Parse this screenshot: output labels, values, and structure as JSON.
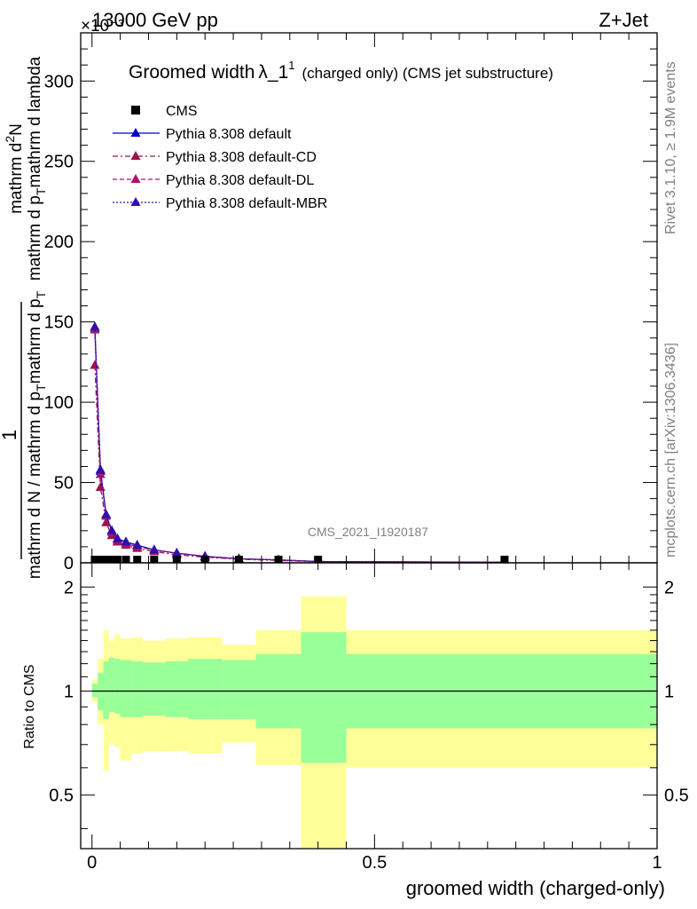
{
  "header": {
    "energy_label": "13000 GeV pp",
    "process_label": "Z+Jet",
    "y_exponent_label": "×10⁻³"
  },
  "side": {
    "rivet_label": "Rivet 3.1.10, ≥ 1.9M events",
    "mcplots_label": "mcplots.cern.ch [arXiv:1306.3436]"
  },
  "chart_data": [
    {
      "type": "line",
      "title_main": "Groomed width",
      "title_symbol": "λ_1",
      "title_sup": "1",
      "title_rest": "(charged only) (CMS jet substructure)",
      "watermark": "CMS_2021_I1920187",
      "ylabel_top": "1",
      "ylabel_bottom": "mathrm d N / mathrm d p_T mathrm d p_T",
      "ylabel_bottom_parts": [
        "mathrm d N / mathrm d p",
        "T",
        "mathrm d p",
        "T"
      ],
      "ylabel_numerator_parts": [
        "mathrm d",
        "2",
        "N"
      ],
      "ylabel_denominator_parts": [
        "mathrm d p",
        "T",
        "mathrm d lambda"
      ],
      "ylim": [
        0,
        330
      ],
      "yticks": [
        0,
        50,
        100,
        150,
        200,
        250,
        300
      ],
      "ytick_labels": [
        "0",
        "50",
        "100",
        "150",
        "200",
        "250",
        "300"
      ],
      "xlim": [
        -0.02,
        1.0
      ],
      "legend": [
        {
          "label": "CMS",
          "marker": "square",
          "color": "#000000",
          "dash": "none"
        },
        {
          "label": "Pythia 8.308 default",
          "marker": "triangle",
          "color": "#0000cc",
          "dash": "solid"
        },
        {
          "label": "Pythia 8.308 default-CD",
          "marker": "triangle",
          "color": "#a01050",
          "dash": "dashdot"
        },
        {
          "label": "Pythia 8.308 default-DL",
          "marker": "triangle",
          "color": "#b0106a",
          "dash": "dashed"
        },
        {
          "label": "Pythia 8.308 default-MBR",
          "marker": "triangle",
          "color": "#3010aa",
          "dash": "dotted"
        }
      ],
      "cms": {
        "x": [
          0.005,
          0.015,
          0.025,
          0.035,
          0.045,
          0.06,
          0.08,
          0.11,
          0.15,
          0.2,
          0.26,
          0.33,
          0.4,
          0.73
        ],
        "y": [
          0.5,
          0.5,
          0.5,
          0.5,
          0.5,
          0.5,
          0.5,
          0.5,
          0.5,
          0.5,
          0.5,
          0.5,
          0.5,
          0.5
        ]
      },
      "series": [
        {
          "name": "Pythia 8.308 default",
          "x": [
            0.005,
            0.015,
            0.025,
            0.035,
            0.045,
            0.06,
            0.08,
            0.11,
            0.15,
            0.2,
            0.26,
            0.33,
            0.4,
            0.73
          ],
          "y": [
            146,
            57,
            30,
            20,
            15,
            13,
            11,
            8,
            6,
            4,
            2.5,
            1.8,
            0.8,
            0.3
          ]
        },
        {
          "name": "Pythia 8.308 default-CD",
          "x": [
            0.005,
            0.015,
            0.025,
            0.035,
            0.045,
            0.06,
            0.08,
            0.11,
            0.15,
            0.2,
            0.26,
            0.33,
            0.4,
            0.73
          ],
          "y": [
            123,
            47,
            25,
            17,
            13,
            11,
            9,
            7,
            5,
            3.5,
            2.2,
            1.5,
            0.7,
            0.3
          ]
        },
        {
          "name": "Pythia 8.308 default-DL",
          "x": [
            0.005,
            0.015,
            0.025,
            0.035,
            0.045,
            0.06,
            0.08,
            0.11,
            0.15,
            0.2,
            0.26,
            0.33,
            0.4,
            0.73
          ],
          "y": [
            145,
            55,
            29,
            19,
            14,
            12,
            10,
            8,
            6,
            4,
            2.5,
            1.8,
            0.8,
            0.3
          ]
        },
        {
          "name": "Pythia 8.308 default-MBR",
          "x": [
            0.005,
            0.015,
            0.025,
            0.035,
            0.045,
            0.06,
            0.08,
            0.11,
            0.15,
            0.2,
            0.26,
            0.33,
            0.4,
            0.73
          ],
          "y": [
            147,
            58,
            30,
            20,
            15,
            13,
            11,
            8,
            6,
            4,
            2.5,
            1.8,
            0.8,
            0.3
          ]
        }
      ]
    },
    {
      "type": "area",
      "ylabel": "Ratio to CMS",
      "xlabel": "groomed width (charged-only)",
      "ylim": [
        0.35,
        2.35
      ],
      "log_y": true,
      "yticks": [
        0.5,
        1,
        2
      ],
      "ytick_labels": [
        "0.5",
        "1",
        "2"
      ],
      "xlim": [
        -0.02,
        1.0
      ],
      "xticks": [
        0,
        0.5,
        1
      ],
      "xtick_labels": [
        "0",
        "0.5",
        "1"
      ],
      "bins": [
        {
          "lo": 0.0,
          "hi": 0.01,
          "inner": [
            0.96,
            1.05
          ],
          "outer": [
            0.93,
            1.08
          ]
        },
        {
          "lo": 0.01,
          "hi": 0.02,
          "inner": [
            0.88,
            1.13
          ],
          "outer": [
            0.8,
            1.24
          ]
        },
        {
          "lo": 0.02,
          "hi": 0.03,
          "inner": [
            0.83,
            1.22
          ],
          "outer": [
            0.59,
            1.5
          ]
        },
        {
          "lo": 0.03,
          "hi": 0.04,
          "inner": [
            0.87,
            1.25
          ],
          "outer": [
            0.7,
            1.4
          ]
        },
        {
          "lo": 0.04,
          "hi": 0.05,
          "inner": [
            0.86,
            1.24
          ],
          "outer": [
            0.69,
            1.46
          ]
        },
        {
          "lo": 0.05,
          "hi": 0.07,
          "inner": [
            0.84,
            1.23
          ],
          "outer": [
            0.63,
            1.42
          ]
        },
        {
          "lo": 0.07,
          "hi": 0.09,
          "inner": [
            0.84,
            1.22
          ],
          "outer": [
            0.66,
            1.43
          ]
        },
        {
          "lo": 0.09,
          "hi": 0.13,
          "inner": [
            0.85,
            1.21
          ],
          "outer": [
            0.67,
            1.4
          ]
        },
        {
          "lo": 0.13,
          "hi": 0.17,
          "inner": [
            0.84,
            1.22
          ],
          "outer": [
            0.67,
            1.42
          ]
        },
        {
          "lo": 0.17,
          "hi": 0.23,
          "inner": [
            0.83,
            1.24
          ],
          "outer": [
            0.66,
            1.43
          ]
        },
        {
          "lo": 0.23,
          "hi": 0.29,
          "inner": [
            0.83,
            1.23
          ],
          "outer": [
            0.71,
            1.36
          ]
        },
        {
          "lo": 0.29,
          "hi": 0.37,
          "inner": [
            0.78,
            1.28
          ],
          "outer": [
            0.61,
            1.5
          ]
        },
        {
          "lo": 0.37,
          "hi": 0.45,
          "inner": [
            0.62,
            1.48
          ],
          "outer": [
            0.35,
            1.88
          ]
        },
        {
          "lo": 0.45,
          "hi": 1.0,
          "inner": [
            0.78,
            1.28
          ],
          "outer": [
            0.6,
            1.5
          ]
        }
      ],
      "colors": {
        "inner": "#99ff99",
        "outer": "#ffff99"
      }
    }
  ]
}
